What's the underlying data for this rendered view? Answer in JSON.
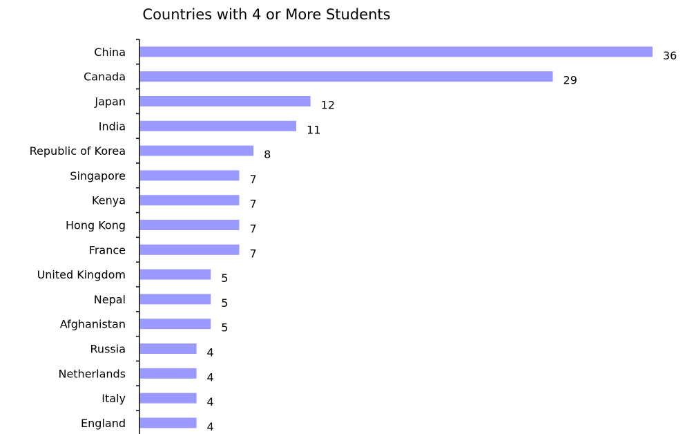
{
  "chart_data": {
    "type": "bar",
    "orientation": "horizontal",
    "title": "Countries with 4 or More Students",
    "xlabel": "",
    "ylabel": "",
    "categories": [
      "China",
      "Canada",
      "Japan",
      "India",
      "Republic of Korea",
      "Singapore",
      "Kenya",
      "Hong Kong",
      "France",
      "United Kingdom",
      "Nepal",
      "Afghanistan",
      "Russia",
      "Netherlands",
      "Italy",
      "England"
    ],
    "values": [
      36,
      29,
      12,
      11,
      8,
      7,
      7,
      7,
      7,
      5,
      5,
      5,
      4,
      4,
      4,
      4
    ],
    "xlim": [
      0,
      36
    ],
    "data_labels": true,
    "grid": false,
    "legend": "none",
    "colors": {
      "bar": "#9999ff",
      "axis": "#000000",
      "text": "#000000"
    }
  }
}
